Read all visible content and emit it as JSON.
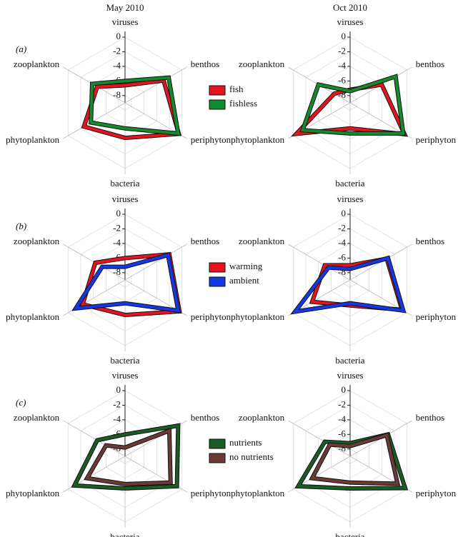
{
  "chart_data": [
    {
      "type": "radar",
      "title": "May 2010",
      "label": "(a)",
      "categories": [
        "viruses",
        "benthos",
        "periphyton",
        "bacteria",
        "phytoplankton",
        "zooplankton"
      ],
      "rlim": [
        -9,
        0
      ],
      "rticks": [
        0,
        -2,
        -4,
        -6,
        -8
      ],
      "grid": true,
      "legend": "right",
      "series": [
        {
          "name": "fish",
          "color": "#e8131e",
          "values": [
            -6.6,
            -2.9,
            -0.5,
            -4.2,
            -2.5,
            -4.6
          ]
        },
        {
          "name": "fishless",
          "color": "#138a2c",
          "values": [
            -6.0,
            -2.1,
            -0.6,
            -5.5,
            -3.6,
            -3.8
          ]
        }
      ]
    },
    {
      "type": "radar",
      "title": "Oct 2010",
      "categories": [
        "viruses",
        "benthos",
        "periphyton",
        "bacteria",
        "phytoplankton",
        "zooplankton"
      ],
      "rlim": [
        -9,
        0
      ],
      "rticks": [
        0,
        -2,
        -4,
        -6,
        -8
      ],
      "grid": true,
      "series": [
        {
          "color": "#e8131e",
          "values": [
            -7.2,
            -4.0,
            -0.4,
            -5.5,
            -0.5,
            -6.5
          ]
        },
        {
          "color": "#138a2c",
          "values": [
            -7.4,
            -1.8,
            -0.6,
            -4.8,
            -1.5,
            -4.0
          ]
        }
      ]
    },
    {
      "type": "radar",
      "label": "(b)",
      "categories": [
        "viruses",
        "benthos",
        "periphyton",
        "bacteria",
        "phytoplankton",
        "zooplankton"
      ],
      "rlim": [
        -9,
        0
      ],
      "rticks": [
        0,
        -2,
        -4,
        -6,
        -8
      ],
      "grid": true,
      "legend": "right",
      "series": [
        {
          "name": "warming",
          "color": "#e8131e",
          "values": [
            -6.0,
            -2.0,
            -0.4,
            -4.2,
            -2.3,
            -4.3
          ]
        },
        {
          "name": "ambient",
          "color": "#1437e8",
          "values": [
            -7.2,
            -2.2,
            -0.6,
            -5.8,
            -1.2,
            -5.4
          ]
        }
      ]
    },
    {
      "type": "radar",
      "categories": [
        "viruses",
        "benthos",
        "periphyton",
        "bacteria",
        "phytoplankton",
        "zooplankton"
      ],
      "rlim": [
        -9,
        0
      ],
      "rticks": [
        0,
        -2,
        -4,
        -6,
        -8
      ],
      "grid": true,
      "series": [
        {
          "color": "#e8131e",
          "values": [
            -7.0,
            -3.2,
            -0.8,
            -5.5,
            -3.0,
            -5.0
          ]
        },
        {
          "color": "#1437e8",
          "values": [
            -7.5,
            -3.0,
            -0.6,
            -5.8,
            -0.3,
            -5.6
          ]
        }
      ]
    },
    {
      "type": "radar",
      "label": "(c)",
      "categories": [
        "viruses",
        "benthos",
        "periphyton",
        "bacteria",
        "phytoplankton",
        "zooplankton"
      ],
      "rlim": [
        -9,
        0
      ],
      "rticks": [
        0,
        -2,
        -4,
        -6,
        -8
      ],
      "grid": true,
      "legend": "right",
      "series": [
        {
          "name": "nutrients",
          "color": "#1a5c24",
          "values": [
            -6.0,
            -0.6,
            -0.8,
            -4.6,
            -1.0,
            -4.6
          ]
        },
        {
          "name": "no nutrients",
          "color": "#6b3a36",
          "values": [
            -7.8,
            -2.0,
            -1.8,
            -5.2,
            -3.0,
            -6.0
          ]
        }
      ]
    },
    {
      "type": "radar",
      "categories": [
        "viruses",
        "benthos",
        "periphyton",
        "bacteria",
        "phytoplankton",
        "zooplankton"
      ],
      "rlim": [
        -9,
        0
      ],
      "rticks": [
        0,
        -2,
        -4,
        -6,
        -8
      ],
      "grid": true,
      "series": [
        {
          "color": "#1a5c24",
          "values": [
            -7.2,
            -3.0,
            -0.3,
            -4.6,
            -0.8,
            -5.0
          ]
        },
        {
          "color": "#6b3a36",
          "values": [
            -7.6,
            -3.2,
            -1.5,
            -5.4,
            -3.0,
            -5.8
          ]
        }
      ]
    }
  ]
}
